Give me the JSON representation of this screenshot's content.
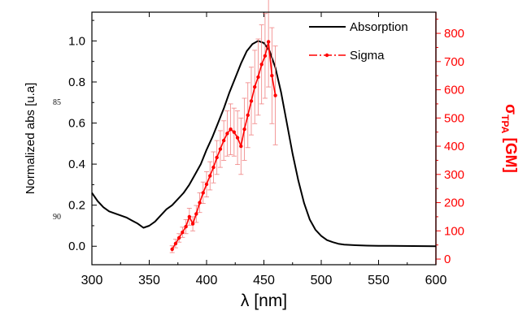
{
  "margin_notes": [
    "85",
    "90"
  ],
  "chart_data": {
    "type": "line",
    "xlabel": "λ [nm]",
    "ylabel_left": "Normalized abs [u.a]",
    "ylabel_right_main": "σ",
    "ylabel_right_sub": "TPA",
    "ylabel_right_unit": " [GM]",
    "xlim": [
      300,
      600
    ],
    "ylim_left": [
      -0.09,
      1.14
    ],
    "ylim_right": [
      -20,
      875
    ],
    "x_ticks": [
      "300",
      "350",
      "400",
      "450",
      "500",
      "550",
      "600"
    ],
    "y_ticks_left": [
      "0.0",
      "0.2",
      "0.4",
      "0.6",
      "0.8",
      "1.0"
    ],
    "y_ticks_right": [
      "0",
      "100",
      "200",
      "300",
      "400",
      "500",
      "600",
      "700",
      "800"
    ],
    "legend_position": "top-right",
    "colors": {
      "absorption": "#000000",
      "sigma": "#ff0000"
    },
    "series": [
      {
        "name": "Absorption",
        "axis": "left",
        "x": [
          300,
          305,
          310,
          315,
          320,
          325,
          330,
          335,
          340,
          345,
          350,
          355,
          360,
          365,
          370,
          375,
          380,
          385,
          390,
          395,
          400,
          405,
          410,
          415,
          420,
          425,
          430,
          435,
          440,
          445,
          450,
          455,
          460,
          465,
          470,
          475,
          480,
          485,
          490,
          495,
          500,
          505,
          510,
          515,
          520,
          530,
          540,
          550,
          560,
          580,
          600
        ],
        "y": [
          0.26,
          0.22,
          0.19,
          0.17,
          0.16,
          0.15,
          0.14,
          0.125,
          0.11,
          0.09,
          0.1,
          0.12,
          0.15,
          0.18,
          0.2,
          0.23,
          0.26,
          0.3,
          0.35,
          0.4,
          0.47,
          0.53,
          0.6,
          0.67,
          0.75,
          0.82,
          0.89,
          0.95,
          0.985,
          1.0,
          0.99,
          0.95,
          0.87,
          0.75,
          0.6,
          0.45,
          0.32,
          0.21,
          0.13,
          0.08,
          0.05,
          0.03,
          0.02,
          0.012,
          0.008,
          0.005,
          0.003,
          0.002,
          0.002,
          0.001,
          0.0
        ]
      },
      {
        "name": "Sigma",
        "axis": "right",
        "x": [
          370,
          373,
          376,
          379,
          382,
          385,
          388,
          391,
          394,
          397,
          400,
          403,
          406,
          409,
          412,
          415,
          418,
          421,
          424,
          427,
          430,
          433,
          436,
          439,
          442,
          445,
          448,
          451,
          454,
          457,
          460
        ],
        "y": [
          35,
          55,
          75,
          95,
          115,
          150,
          125,
          160,
          200,
          235,
          265,
          295,
          325,
          360,
          390,
          420,
          445,
          460,
          450,
          430,
          400,
          460,
          510,
          560,
          610,
          645,
          690,
          720,
          770,
          650,
          580
        ],
        "err": [
          12,
          15,
          15,
          18,
          25,
          30,
          25,
          30,
          35,
          38,
          45,
          50,
          55,
          60,
          65,
          70,
          80,
          90,
          85,
          95,
          100,
          110,
          115,
          120,
          130,
          135,
          140,
          150,
          160,
          170,
          175
        ]
      }
    ]
  }
}
